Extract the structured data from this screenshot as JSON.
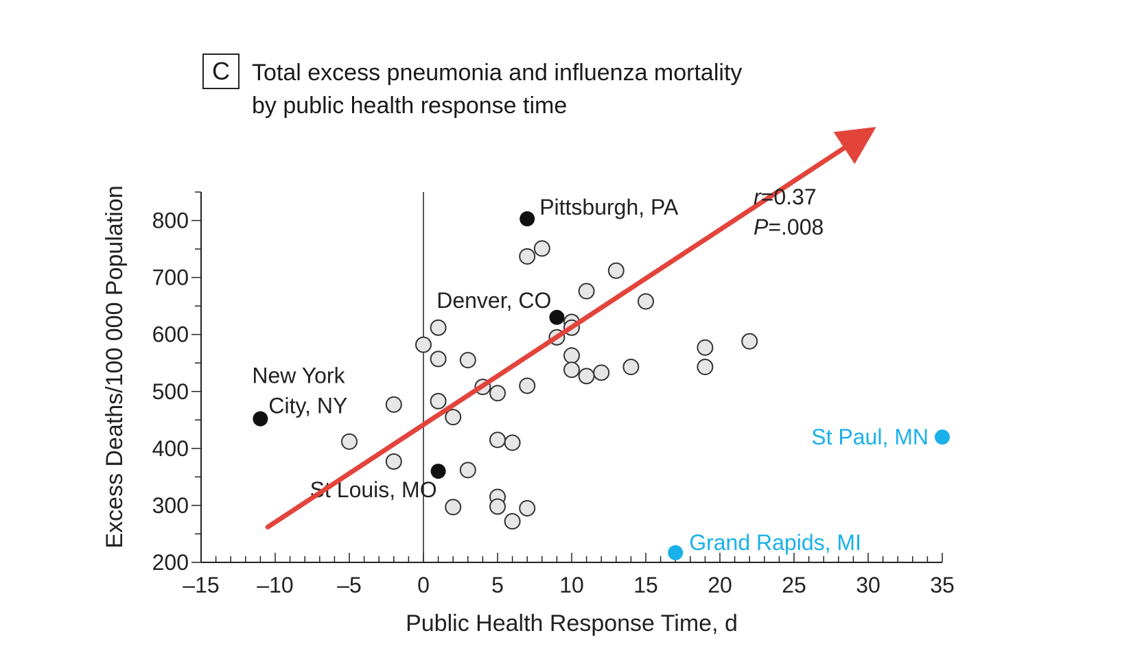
{
  "panel_label": "C",
  "chart_data": {
    "type": "scatter",
    "title_line1": "Total excess pneumonia and influenza mortality",
    "title_line2": "by public health response time",
    "xlabel": "Public Health Response Time, d",
    "ylabel": "Excess Deaths/100 000 Population",
    "xlim": [
      -15,
      35
    ],
    "ylim": [
      200,
      850
    ],
    "x_ticks": [
      -15,
      -10,
      -5,
      0,
      5,
      10,
      15,
      20,
      25,
      30,
      35
    ],
    "x_tick_labels": [
      "–15",
      "–10",
      "–5",
      "0",
      "5",
      "10",
      "15",
      "20",
      "25",
      "30",
      "35"
    ],
    "y_ticks": [
      200,
      300,
      400,
      500,
      600,
      700,
      800
    ],
    "y_tick_labels": [
      "200",
      "300",
      "400",
      "500",
      "600",
      "700",
      "800"
    ],
    "stats": {
      "r_symbol": "r",
      "r_value": "=0.37",
      "p_symbol": "P",
      "p_value": "=.008"
    },
    "colors": {
      "open_fill": "#e6e6e6",
      "open_stroke": "#333333",
      "highlight": "#111111",
      "outlier": "#1ab0ea",
      "trend": "#e2443c"
    },
    "points": [
      {
        "x": 0,
        "y": 582
      },
      {
        "x": 1,
        "y": 612
      },
      {
        "x": 1,
        "y": 557
      },
      {
        "x": 3,
        "y": 555
      },
      {
        "x": -2,
        "y": 477
      },
      {
        "x": -5,
        "y": 412
      },
      {
        "x": -2,
        "y": 377
      },
      {
        "x": 1,
        "y": 483
      },
      {
        "x": 2,
        "y": 455
      },
      {
        "x": 4,
        "y": 508
      },
      {
        "x": 5,
        "y": 497
      },
      {
        "x": 7,
        "y": 510
      },
      {
        "x": 3,
        "y": 362
      },
      {
        "x": 2,
        "y": 297
      },
      {
        "x": 5,
        "y": 315
      },
      {
        "x": 5,
        "y": 298
      },
      {
        "x": 6,
        "y": 272
      },
      {
        "x": 7,
        "y": 295
      },
      {
        "x": 5,
        "y": 415
      },
      {
        "x": 6,
        "y": 410
      },
      {
        "x": 7,
        "y": 737
      },
      {
        "x": 8,
        "y": 751
      },
      {
        "x": 13,
        "y": 712
      },
      {
        "x": 11,
        "y": 676
      },
      {
        "x": 15,
        "y": 658
      },
      {
        "x": 10,
        "y": 622
      },
      {
        "x": 10,
        "y": 612
      },
      {
        "x": 9,
        "y": 595
      },
      {
        "x": 10,
        "y": 563
      },
      {
        "x": 10,
        "y": 538
      },
      {
        "x": 11,
        "y": 527
      },
      {
        "x": 12,
        "y": 533
      },
      {
        "x": 14,
        "y": 543
      },
      {
        "x": 19,
        "y": 577
      },
      {
        "x": 19,
        "y": 543
      },
      {
        "x": 22,
        "y": 588
      }
    ],
    "highlighted_points": [
      {
        "x": 7,
        "y": 803,
        "label": "Pittsburgh, PA"
      },
      {
        "x": 9,
        "y": 630,
        "label": "Denver, CO"
      },
      {
        "x": -11,
        "y": 452,
        "label": "New York City, NY",
        "label_line1": "New York",
        "label_line2": "City, NY"
      },
      {
        "x": 1,
        "y": 360,
        "label": "St Louis, MO"
      }
    ],
    "outlier_points": [
      {
        "x": 35,
        "y": 420,
        "label": "St Paul, MN"
      },
      {
        "x": 17,
        "y": 217,
        "label": "Grand Rapids, MI"
      }
    ],
    "trend_arrow": {
      "from": [
        -10.5,
        262
      ],
      "to": [
        30,
        955
      ]
    }
  }
}
